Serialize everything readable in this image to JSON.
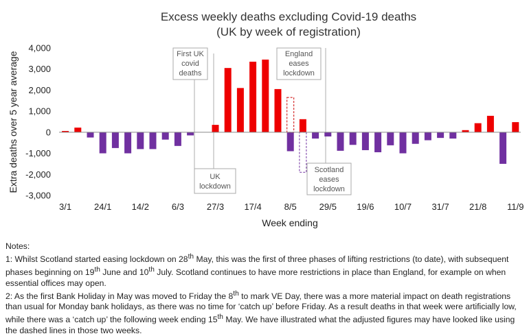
{
  "chart_data": {
    "type": "bar",
    "title": "Excess weekly deaths excluding Covid-19 deaths",
    "subtitle": "(UK by week of registration)",
    "xlabel": "Week ending",
    "ylabel": "Extra deaths over 5 year average",
    "ylim": [
      -3000,
      4000
    ],
    "yticks": [
      "-3,000",
      "-2,000",
      "-1,000",
      "0",
      "1,000",
      "2,000",
      "3,000",
      "4,000"
    ],
    "xtick_labels": [
      "3/1",
      "24/1",
      "14/2",
      "6/3",
      "27/3",
      "17/4",
      "8/5",
      "29/5",
      "19/6",
      "10/7",
      "31/7",
      "21/8",
      "11/9"
    ],
    "values": [
      60,
      220,
      -250,
      -1000,
      -750,
      -1000,
      -800,
      -800,
      -350,
      -650,
      -150,
      0,
      350,
      3050,
      2100,
      3350,
      3450,
      2050,
      -900,
      620,
      -300,
      -200,
      -880,
      -600,
      -850,
      -950,
      -620,
      -1000,
      -550,
      -380,
      -270,
      -300,
      100,
      430,
      780,
      -1500,
      480
    ],
    "colors": {
      "positive": "#ee0000",
      "negative": "#7030a0",
      "dashed": "#cc0000",
      "dashed_negative": "#7030a0"
    },
    "adjusted_dashed": [
      {
        "week_index": 18,
        "value": 1650
      },
      {
        "week_index": 19,
        "value": -1900
      }
    ],
    "annotations": [
      {
        "lines": [
          "First UK",
          "covid",
          "deaths"
        ]
      },
      {
        "lines": [
          "UK",
          "lockdown"
        ]
      },
      {
        "lines": [
          "England",
          "eases",
          "lockdown"
        ]
      },
      {
        "lines": [
          "Scotland",
          "eases",
          "lockdown"
        ]
      }
    ]
  },
  "notes": {
    "heading": "Notes:",
    "note1_a": "1: Whilst Scotland started easing lockdown on 28",
    "note1_sup1": "th",
    "note1_b": " May, this was the first of three phases of lifting restrictions (to date), with subsequent phases beginning on 19",
    "note1_sup2": "th",
    "note1_c": " June and 10",
    "note1_sup3": "th",
    "note1_d": " July. Scotland continues to have more restrictions in place than England, for example on when essential offices may open.",
    "note2_a": "2: As the first Bank Holiday in May was moved to Friday the 8",
    "note2_sup1": "th",
    "note2_b": " to mark VE Day, there was a more material impact on death registrations than usual for Monday bank holidays, as there was no time for ‘catch up’ before Friday. As a result deaths in that week were artificially low, while there was a ‘catch up’ the following week ending 15",
    "note2_sup2": "th",
    "note2_c": " May. We have illustrated what the adjusted figures may have looked like using the dashed lines in those two weeks."
  }
}
